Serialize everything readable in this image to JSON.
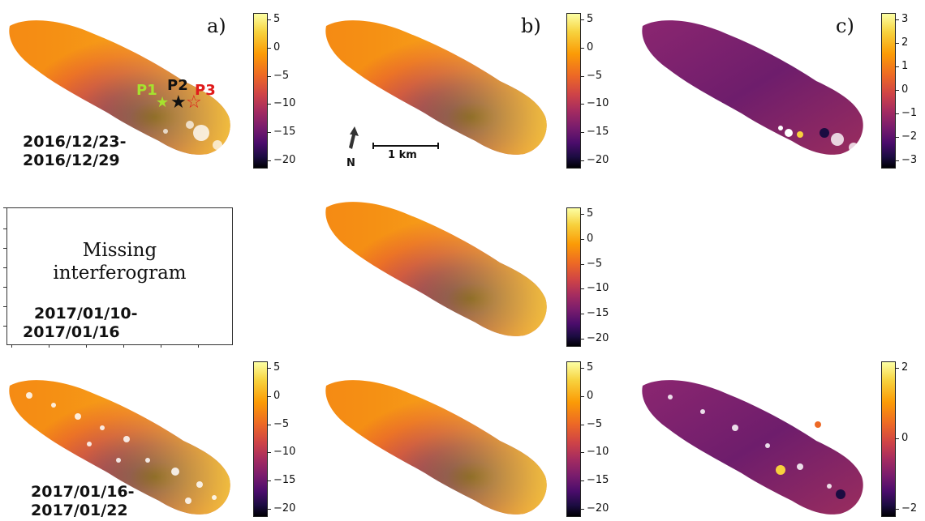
{
  "panels": {
    "a": "a)",
    "b": "b)",
    "c": "c)"
  },
  "dates": {
    "row1": [
      "2016/12/23-",
      "2016/12/29"
    ],
    "row2": [
      "2017/01/10-",
      "2017/01/16"
    ],
    "row3": [
      "2017/01/16-",
      "2017/01/22"
    ]
  },
  "missing": {
    "line1": "Missing",
    "line2": "interferogram"
  },
  "markers": {
    "p1": {
      "label": "P1",
      "color": "#a6e22e"
    },
    "p2": {
      "label": "P2",
      "color": "#111111"
    },
    "p3": {
      "label": "P3",
      "color": "#e01b1b"
    }
  },
  "scalebar": {
    "label": "1 km",
    "north": "N"
  },
  "colorbars": {
    "deformation": [
      "5",
      "0",
      "−5",
      "−10",
      "−15",
      "−20"
    ],
    "residual_top": [
      "3",
      "2",
      "1",
      "0",
      "−1",
      "−2",
      "−3"
    ],
    "residual_bottom": [
      "2",
      "0",
      "−2"
    ]
  },
  "colors": {
    "colormap": "inferno",
    "low": "#000004",
    "mid": "#cf4446",
    "high": "#fcffa4"
  }
}
